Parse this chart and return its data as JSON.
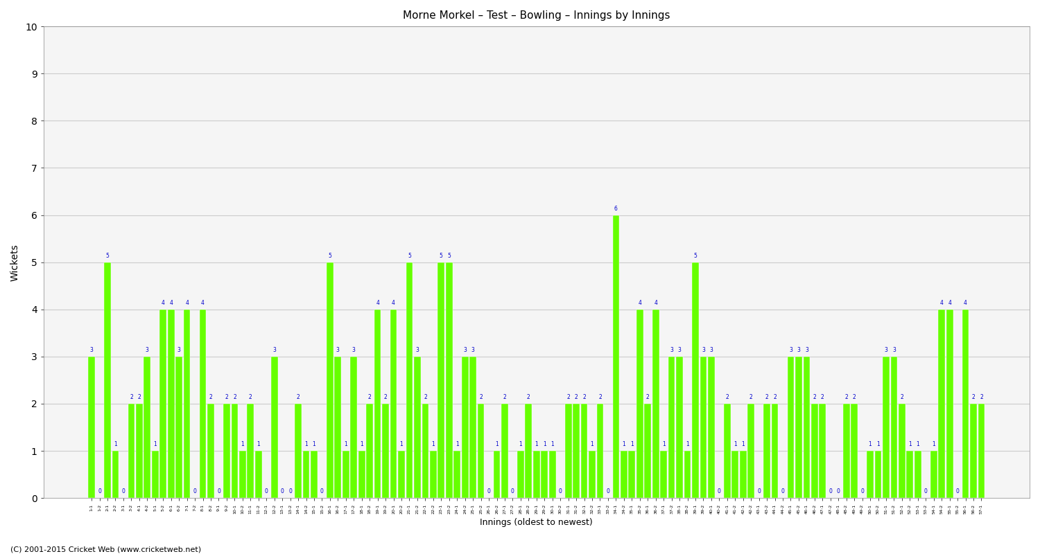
{
  "title": "Morne Morkel – Test – Bowling – Innings by Innings",
  "xlabel": "Innings (oldest to newest)",
  "ylabel": "Wickets",
  "ylim": [
    0,
    10
  ],
  "yticks": [
    0,
    1,
    2,
    3,
    4,
    5,
    6,
    7,
    8,
    9,
    10
  ],
  "bar_color": "#66ff00",
  "label_color": "#0000cc",
  "plot_bg_color": "#f5f5f5",
  "fig_bg_color": "#ffffff",
  "grid_color": "#cccccc",
  "footer": "(C) 2001-2015 Cricket Web (www.cricketweb.net)",
  "wickets": [
    3,
    0,
    5,
    1,
    0,
    2,
    2,
    3,
    1,
    4,
    4,
    3,
    4,
    0,
    4,
    2,
    0,
    2,
    2,
    1,
    2,
    1,
    0,
    3,
    0,
    0,
    2,
    1,
    1,
    0,
    5,
    3,
    1,
    3,
    1,
    2,
    4,
    2,
    4,
    1,
    5,
    3,
    2,
    1,
    5,
    5,
    1,
    3,
    3,
    2,
    0,
    1,
    2,
    0,
    1,
    2,
    1,
    1,
    1,
    0,
    2,
    2,
    2,
    1,
    2,
    0,
    6,
    1,
    1,
    4,
    2,
    4,
    1,
    3,
    3,
    1,
    5,
    3,
    3,
    0,
    2,
    1,
    1,
    2,
    0,
    2,
    2,
    0,
    3,
    3,
    3,
    2,
    2,
    0,
    0,
    2,
    2,
    0,
    1,
    1,
    3,
    3,
    2,
    1,
    1,
    0,
    1,
    4,
    4,
    0,
    4,
    2,
    2
  ]
}
